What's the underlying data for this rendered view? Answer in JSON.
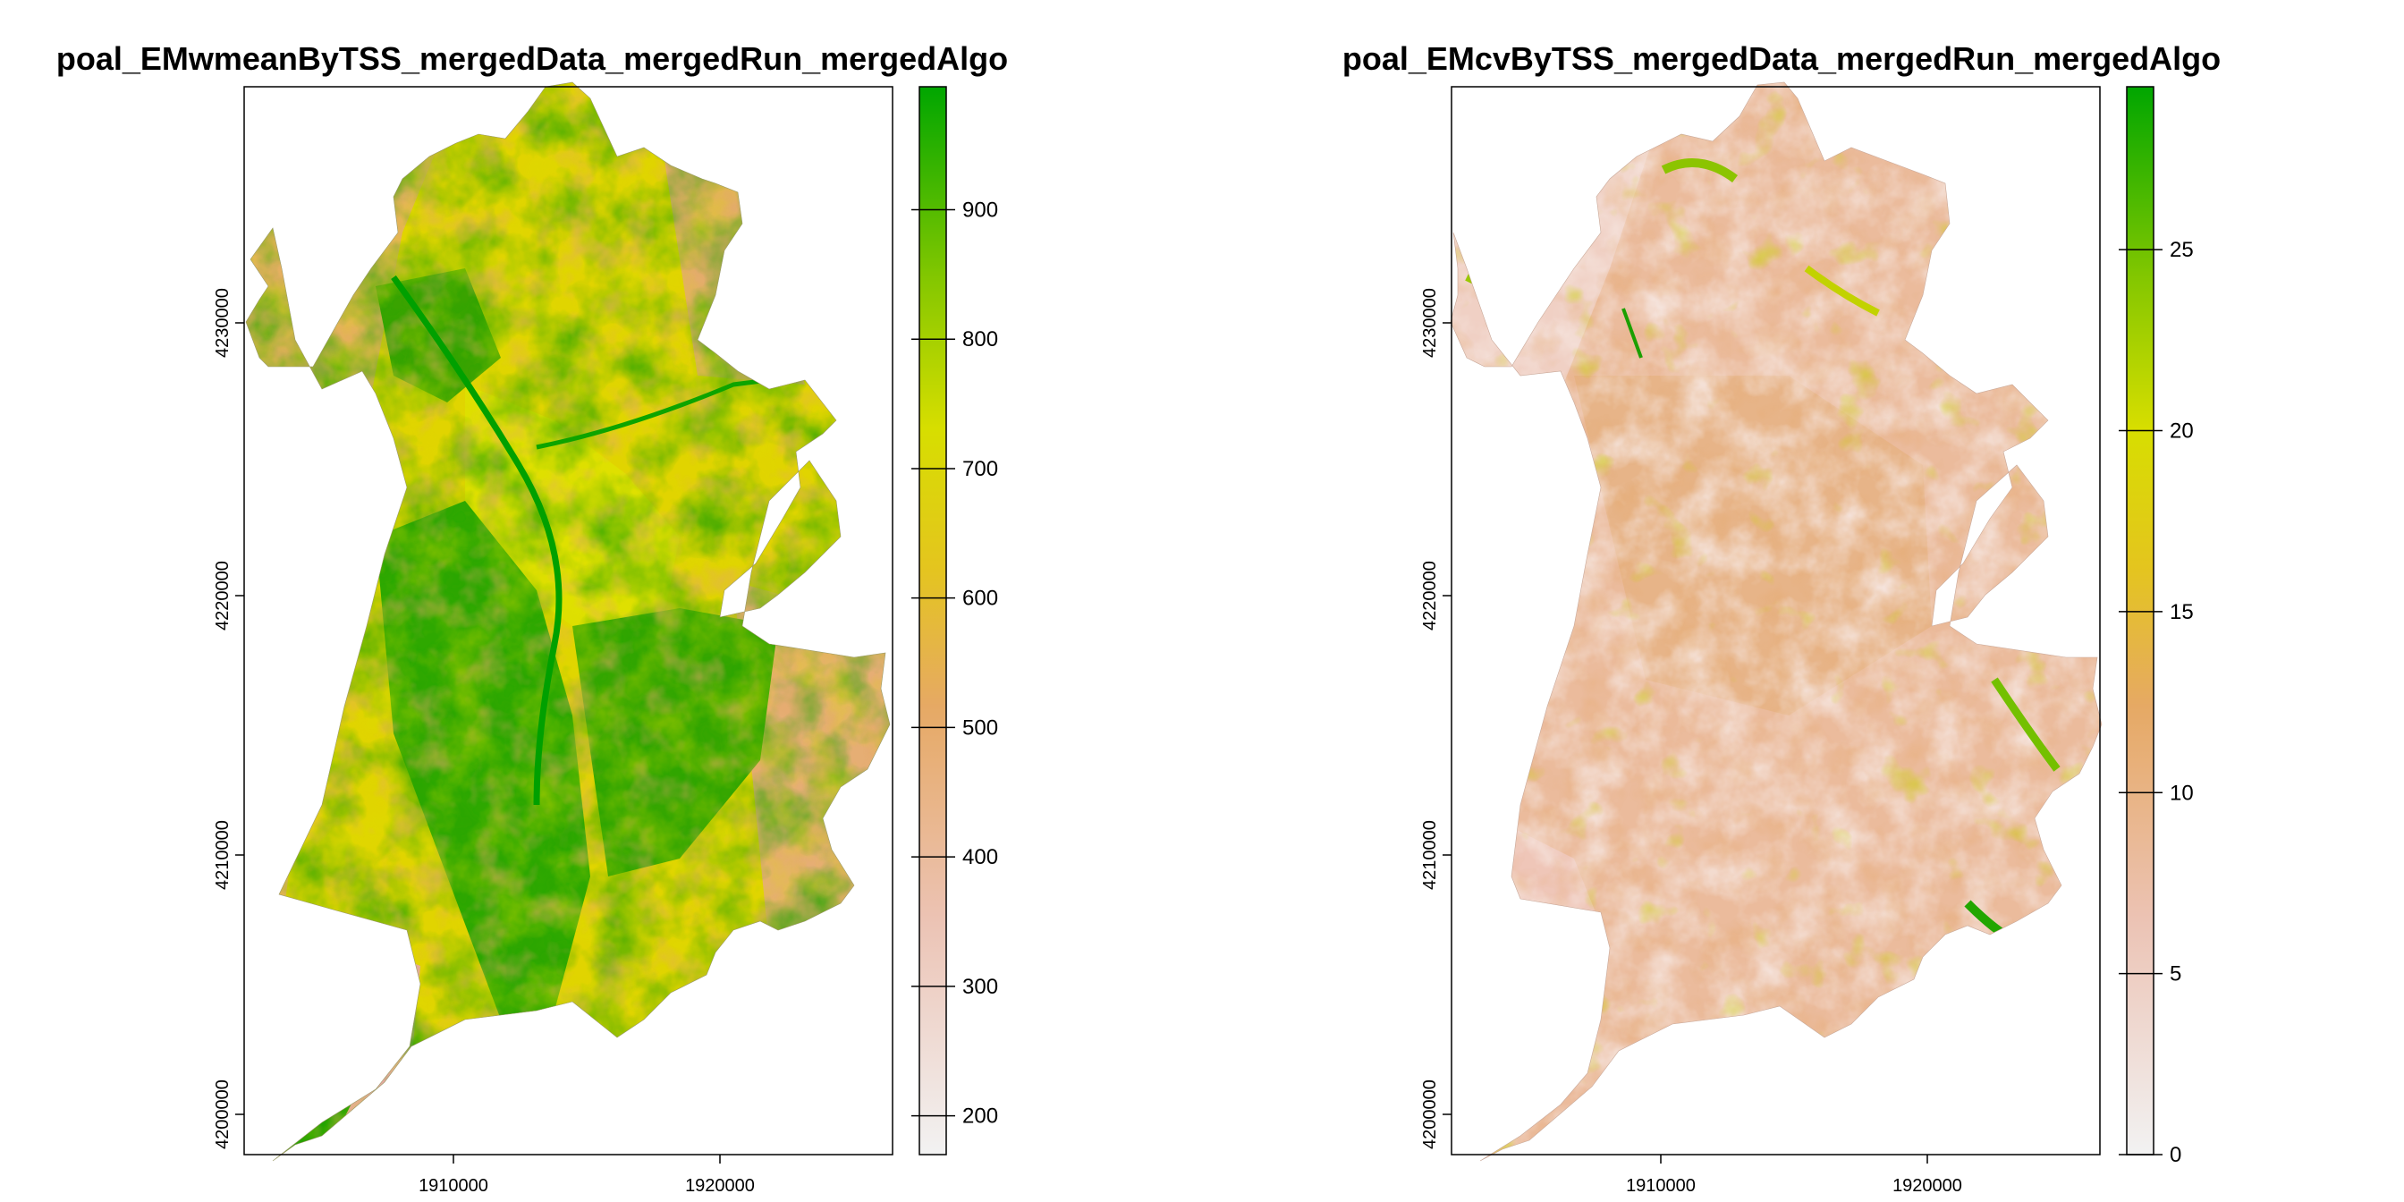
{
  "panels": [
    {
      "title": "poal_EMwmeanByTSS_mergedData_mergedRun_mergedAlgo",
      "x_ticks": [
        "1910000",
        "1920000"
      ],
      "y_ticks": [
        "4230000",
        "4220000",
        "4210000",
        "4200000"
      ],
      "legend_ticks": [
        "900",
        "800",
        "700",
        "600",
        "500",
        "400",
        "300",
        "200"
      ],
      "legend_range": [
        170,
        995
      ],
      "legend_ticks_values": [
        900,
        800,
        700,
        600,
        500,
        400,
        300,
        200
      ]
    },
    {
      "title": "poal_EMcvByTSS_mergedData_mergedRun_mergedAlgo",
      "x_ticks": [
        "1910000",
        "1920000"
      ],
      "y_ticks": [
        "4230000",
        "4220000",
        "4210000",
        "4200000"
      ],
      "legend_ticks": [
        "25",
        "20",
        "15",
        "10",
        "5",
        "0"
      ],
      "legend_range": [
        0,
        29.5
      ],
      "legend_ticks_values": [
        25,
        20,
        15,
        10,
        5,
        0
      ]
    }
  ],
  "colors": {
    "palette_low": "#f2f2f2",
    "palette_mid_low": "#e8b087",
    "palette_mid": "#e0c000",
    "palette_mid_high": "#8bc800",
    "palette_high": "#00a600"
  }
}
